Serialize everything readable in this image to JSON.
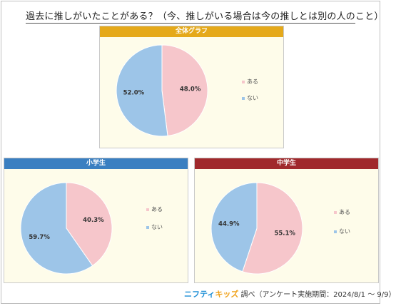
{
  "title": "過去に推しがいたことがある？（今、推しがいる場合は今の推しとは別の人のこと）",
  "footer": {
    "brand_part1": "ニフティ",
    "brand_part2": "キッズ",
    "text": "調べ（アンケート実施期間：2024/8/1 〜 9/9）"
  },
  "colors": {
    "aru": "#f6c6cb",
    "nai": "#9dc5e8",
    "header_all": "#e5a91a",
    "header_elementary": "#3a7fc1",
    "header_middle": "#a0282c"
  },
  "chart_data": [
    {
      "type": "pie",
      "title": "全体グラフ",
      "labels": [
        "ある",
        "ない"
      ],
      "values": [
        48.0,
        52.0
      ],
      "value_labels": [
        "48.0%",
        "52.0%"
      ],
      "legend_position": "right"
    },
    {
      "type": "pie",
      "title": "小学生",
      "labels": [
        "ある",
        "ない"
      ],
      "values": [
        40.3,
        59.7
      ],
      "value_labels": [
        "40.3%",
        "59.7%"
      ],
      "legend_position": "right"
    },
    {
      "type": "pie",
      "title": "中学生",
      "labels": [
        "ある",
        "ない"
      ],
      "values": [
        55.1,
        44.9
      ],
      "value_labels": [
        "55.1%",
        "44.9%"
      ],
      "legend_position": "right"
    }
  ]
}
